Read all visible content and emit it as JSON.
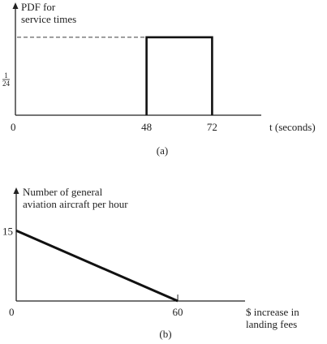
{
  "chart_data": [
    {
      "type": "line",
      "panel_label": "(a)",
      "ylabel_lines": [
        "PDF for",
        "service times"
      ],
      "xlabel": "t (seconds)",
      "origin_label": "0",
      "y_tick_label": {
        "numerator": "1",
        "denominator": "24"
      },
      "x_ticks": [
        "48",
        "72"
      ],
      "xlim": [
        0,
        90
      ],
      "ylim": [
        0,
        0.0555
      ],
      "y_reference": 0.041667,
      "reference_line": "dashed",
      "series": [
        {
          "x": [
            48,
            48,
            72,
            72
          ],
          "y": [
            0,
            0.041667,
            0.041667,
            0
          ]
        }
      ]
    },
    {
      "type": "line",
      "panel_label": "(b)",
      "ylabel_lines": [
        "Number of general",
        "aviation aircraft per hour"
      ],
      "xlabel_lines": [
        "$ increase in",
        "landing fees"
      ],
      "origin_label": "0",
      "y_ticks": [
        "15"
      ],
      "x_ticks": [
        "60"
      ],
      "xlim": [
        0,
        85
      ],
      "ylim": [
        0,
        23
      ],
      "series": [
        {
          "x": [
            0,
            60
          ],
          "y": [
            15,
            0
          ]
        }
      ]
    }
  ]
}
